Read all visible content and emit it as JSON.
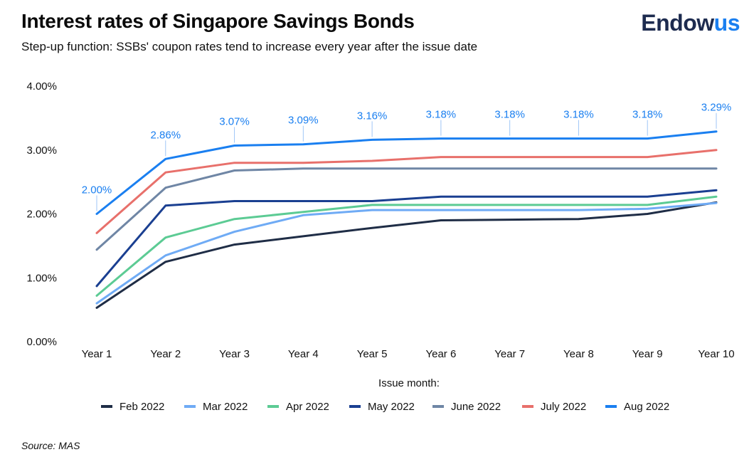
{
  "header": {
    "title": "Interest rates of Singapore Savings Bonds",
    "subtitle": "Step-up function: SSBs' coupon rates tend to increase every year after the issue date",
    "logo_part1": "Endow",
    "logo_part2": "us"
  },
  "footer": {
    "source": "Source: MAS"
  },
  "chart_data": {
    "type": "line",
    "title": "Interest rates of Singapore Savings Bonds",
    "subtitle": "Step-up function: SSBs' coupon rates tend to increase every year after the issue date",
    "categories": [
      "Year 1",
      "Year 2",
      "Year 3",
      "Year 4",
      "Year 5",
      "Year 6",
      "Year 7",
      "Year 8",
      "Year 9",
      "Year 10"
    ],
    "y_ticks": [
      "0.00%",
      "1.00%",
      "2.00%",
      "3.00%",
      "4.00%"
    ],
    "ylim": [
      0,
      4
    ],
    "grid": false,
    "legend_title": "Issue month:",
    "legend_position": "bottom",
    "series": [
      {
        "name": "Feb 2022",
        "color": "#1f2d46",
        "values": [
          0.53,
          1.25,
          1.52,
          1.65,
          1.78,
          1.9,
          1.91,
          1.92,
          2.0,
          2.18
        ]
      },
      {
        "name": "Mar 2022",
        "color": "#6fabf5",
        "values": [
          0.6,
          1.35,
          1.72,
          1.98,
          2.06,
          2.06,
          2.06,
          2.06,
          2.08,
          2.17
        ]
      },
      {
        "name": "Apr 2022",
        "color": "#5ccb94",
        "values": [
          0.72,
          1.63,
          1.92,
          2.03,
          2.14,
          2.14,
          2.14,
          2.14,
          2.14,
          2.27
        ]
      },
      {
        "name": "May 2022",
        "color": "#1a3f91",
        "values": [
          0.87,
          2.13,
          2.2,
          2.2,
          2.2,
          2.27,
          2.27,
          2.27,
          2.27,
          2.37
        ]
      },
      {
        "name": "June 2022",
        "color": "#6f86a5",
        "values": [
          1.44,
          2.41,
          2.68,
          2.71,
          2.71,
          2.71,
          2.71,
          2.71,
          2.71,
          2.71
        ]
      },
      {
        "name": "July 2022",
        "color": "#e8706b",
        "values": [
          1.7,
          2.65,
          2.8,
          2.8,
          2.83,
          2.89,
          2.89,
          2.89,
          2.89,
          3.0
        ]
      },
      {
        "name": "Aug 2022",
        "color": "#1a7ff0",
        "values": [
          2.0,
          2.86,
          3.07,
          3.09,
          3.16,
          3.18,
          3.18,
          3.18,
          3.18,
          3.29
        ],
        "data_labels": [
          "2.00%",
          "2.86%",
          "3.07%",
          "3.09%",
          "3.16%",
          "3.18%",
          "3.18%",
          "3.18%",
          "3.18%",
          "3.29%"
        ]
      }
    ]
  }
}
